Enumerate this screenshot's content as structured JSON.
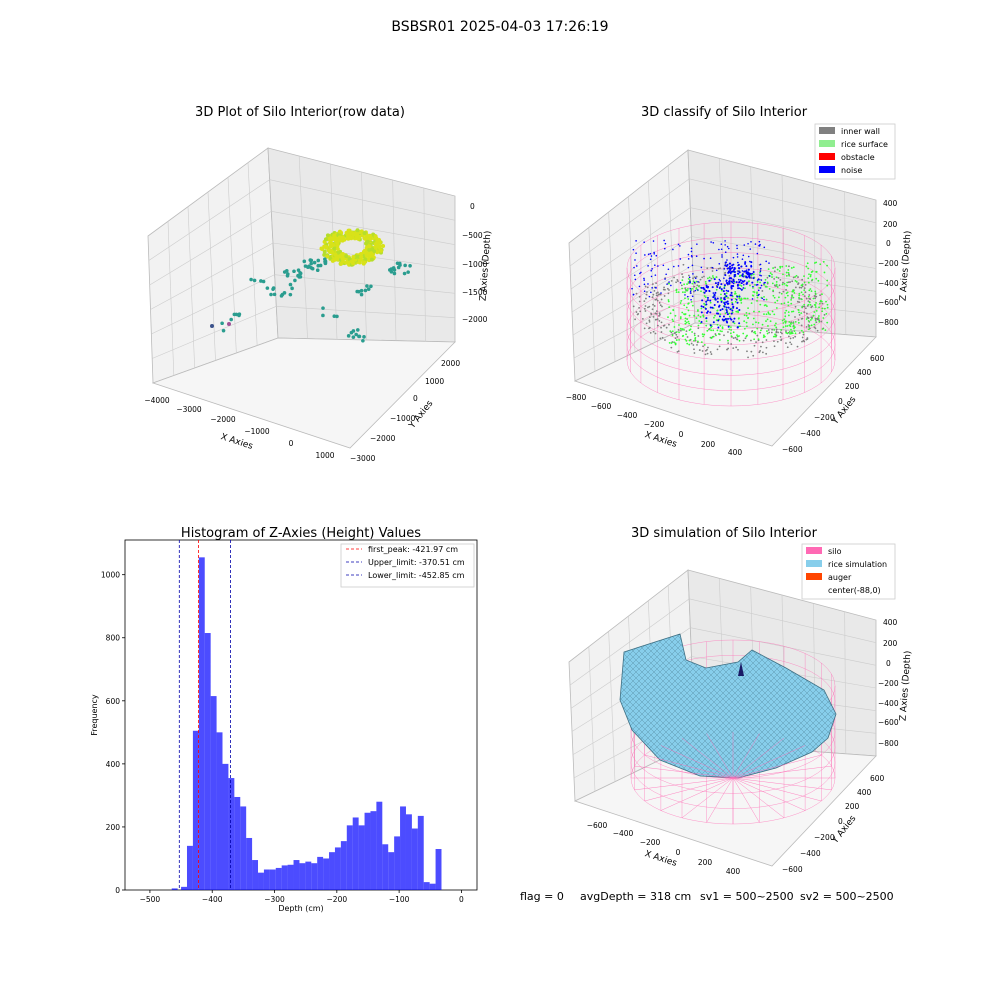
{
  "figure": {
    "suptitle": "BSBSR01 2025-04-03 17:26:19",
    "footer": {
      "flag": "flag = 0",
      "avg_depth": "avgDepth = 318 cm",
      "sv1": "sv1 = 500~2500",
      "sv2": "sv2 = 500~2500"
    }
  },
  "chart_data": [
    {
      "id": "raw",
      "type": "scatter",
      "title": "3D Plot of Silo Interior(row data)",
      "xlabel": "X Axies",
      "ylabel": "Y Axies",
      "zlabel": "Z Axies (Depth)",
      "x_ticks": [
        "−4000",
        "−3000",
        "−2000",
        "−1000",
        "0",
        "1000"
      ],
      "y_ticks": [
        "−3000",
        "−2000",
        "−1000",
        "0",
        "1000",
        "2000"
      ],
      "z_ticks": [
        "−2000",
        "−1500",
        "−1000",
        "−500",
        "0"
      ],
      "colors": {
        "high": "#d8e219",
        "mid": "#2a9d8f",
        "low": "#3b528b"
      }
    },
    {
      "id": "classify",
      "type": "scatter",
      "title": "3D classify of Silo Interior",
      "xlabel": "X Axies",
      "ylabel": "Y Axies",
      "zlabel": "Z Axies (Depth)",
      "x_ticks": [
        "−800",
        "−600",
        "−400",
        "−200",
        "0",
        "200",
        "400"
      ],
      "y_ticks": [
        "−600",
        "−400",
        "−200",
        "0",
        "200",
        "400",
        "600"
      ],
      "z_ticks": [
        "−800",
        "−600",
        "−400",
        "−200",
        "0",
        "200",
        "400"
      ],
      "legend": [
        {
          "label": "inner wall",
          "color": "#808080"
        },
        {
          "label": "rice surface",
          "color": "#90ee90"
        },
        {
          "label": "obstacle",
          "color": "#ff0000"
        },
        {
          "label": "noise",
          "color": "#0000ff"
        }
      ]
    },
    {
      "id": "histogram",
      "type": "bar",
      "title": "Histogram of Z-Axies (Height) Values",
      "xlabel": "Depth (cm)",
      "ylabel": "Frequency",
      "xlim": [
        -540,
        25
      ],
      "ylim": [
        0,
        1110
      ],
      "x_ticks": [
        -500,
        -400,
        -300,
        -200,
        -100,
        0
      ],
      "x_tick_labels": [
        "−500",
        "−400",
        "−300",
        "−200",
        "−100",
        "0"
      ],
      "y_ticks": [
        0,
        200,
        400,
        600,
        800,
        1000
      ],
      "bin_start": -450,
      "bin_width": 9.5,
      "values": [
        10,
        140,
        505,
        1055,
        815,
        615,
        500,
        400,
        355,
        295,
        265,
        165,
        95,
        55,
        65,
        65,
        70,
        78,
        80,
        95,
        85,
        90,
        85,
        105,
        100,
        120,
        135,
        155,
        205,
        230,
        205,
        245,
        250,
        280,
        145,
        120,
        170,
        265,
        240,
        195,
        235,
        25,
        20,
        130
      ],
      "outliers": [
        {
          "x": -465,
          "value": 5
        }
      ],
      "color": "#0000ff",
      "vlines": [
        {
          "label": "first_peak: -421.97 cm",
          "x": -421.97,
          "color": "#ff0000"
        },
        {
          "label": "Upper_limit: -370.51 cm",
          "x": -370.51,
          "color": "#0000aa"
        },
        {
          "label": "Lower_limit: -452.85 cm",
          "x": -452.85,
          "color": "#0000aa"
        }
      ]
    },
    {
      "id": "simulation",
      "type": "area",
      "title": "3D simulation of Silo Interior",
      "xlabel": "X Axies",
      "ylabel": "Y Axies",
      "zlabel": "Z Axies (Depth)",
      "x_ticks": [
        "−600",
        "−400",
        "−200",
        "0",
        "200",
        "400"
      ],
      "y_ticks": [
        "−600",
        "−400",
        "−200",
        "0",
        "200",
        "400",
        "600"
      ],
      "z_ticks": [
        "−800",
        "−600",
        "−400",
        "−200",
        "0",
        "200",
        "400"
      ],
      "legend": [
        {
          "label": "silo",
          "color": "#ff69b4"
        },
        {
          "label": "rice simulation",
          "color": "#87ceeb"
        },
        {
          "label": "auger",
          "color": "#ff4500"
        },
        {
          "label": "center(-88,0)",
          "color": ""
        }
      ]
    }
  ]
}
